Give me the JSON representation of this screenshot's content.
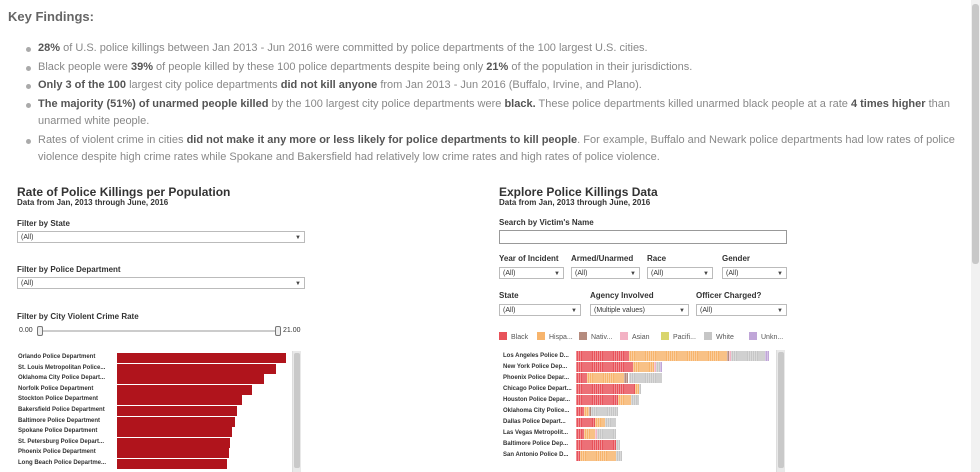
{
  "heading": "Key Findings:",
  "findings": [
    {
      "b1": "28%",
      "t1": " of U.S. police killings between Jan 2013 - Jun 2016 were committed by police departments of the 100 largest U.S. cities.",
      "b2": "",
      "t2": "",
      "b3": "",
      "t3": ""
    },
    {
      "b1": "",
      "t1": "Black people were ",
      "b2": "39%",
      "t2": " of people killed by these 100 police departments despite being only ",
      "b3": "21%",
      "t3": " of the population in their jurisdictions."
    },
    {
      "b1": "Only 3 of the 100",
      "t1": " largest city police departments ",
      "b2": "did not kill anyone",
      "t2": " from Jan 2013 - Jun 2016 (Buffalo, Irvine, and Plano).",
      "b3": "",
      "t3": ""
    },
    {
      "b1": "The majority (51%) of unarmed people killed",
      "t1": " by the 100 largest city police departments were ",
      "b2": "black.",
      "t2": " These police departments killed unarmed black people at a rate ",
      "b3": "4 times higher",
      "t3": " than unarmed white people."
    },
    {
      "b1": "",
      "t1": "Rates of violent crime in cities ",
      "b2": "did not make it any more or less likely for police departments to kill people",
      "t2": ". For example, Buffalo and Newark police departments had low rates of police violence despite high crime rates while Spokane and Bakersfield had relatively low crime rates and high rates of police violence.",
      "b3": "",
      "t3": ""
    }
  ],
  "left": {
    "title": "Rate of Police Killings per Population",
    "subtitle": "Data from Jan, 2013 through June, 2016",
    "filter_state_label": "Filter by State",
    "filter_state_value": "(All)",
    "filter_dept_label": "Filter by Police Department",
    "filter_dept_value": "(All)",
    "filter_crime_label": "Filter by City Violent Crime Rate",
    "crime_min": "0.00",
    "crime_max": "21.00",
    "bar_color": "#b0141c"
  },
  "right": {
    "title": "Explore Police Killings Data",
    "subtitle": "Data from Jan, 2013 through June, 2016",
    "search_label": "Search by Victim's Name",
    "search_value": "",
    "year_label": "Year of Incident",
    "year_value": "(All)",
    "armed_label": "Armed/Unarmed",
    "armed_value": "(All)",
    "race_label": "Race",
    "race_value": "(All)",
    "gender_label": "Gender",
    "gender_value": "(All)",
    "state_label": "State",
    "state_value": "(All)",
    "agency_label": "Agency Involved",
    "agency_value": "(Multiple values)",
    "charged_label": "Officer Charged?",
    "charged_value": "(All)",
    "legend": [
      {
        "label": "Black",
        "color": "#e8525a"
      },
      {
        "label": "Hispa...",
        "color": "#f7b46c"
      },
      {
        "label": "Nativ...",
        "color": "#b58b7e"
      },
      {
        "label": "Asian",
        "color": "#f3b2c4"
      },
      {
        "label": "Pacifi...",
        "color": "#d9d56c"
      },
      {
        "label": "White",
        "color": "#c6c6c6"
      },
      {
        "label": "Unkn...",
        "color": "#c0a6d8"
      }
    ]
  },
  "chart_data": [
    {
      "type": "bar",
      "categories": [
        "Orlando Police Department",
        "St. Louis Metropolitan Police...",
        "Oklahoma City Police Depart...",
        "Norfolk Police Department",
        "Stockton Police Department",
        "Bakersfield Police Department",
        "Baltimore Police Department",
        "Spokane Police Department",
        "St. Petersburg Police Depart...",
        "Phoenix Police Department",
        "Long Beach Police Departme..."
      ],
      "values": [
        1.0,
        0.94,
        0.87,
        0.8,
        0.74,
        0.71,
        0.7,
        0.68,
        0.67,
        0.66,
        0.65
      ],
      "title": "Rate of Police Killings per Population",
      "xlabel": "",
      "ylabel": ""
    },
    {
      "type": "bar",
      "categories": [
        "Los Angeles Police D...",
        "New York Police Dep...",
        "Phoenix Police Depar...",
        "Chicago Police Depart...",
        "Houston Police Depar...",
        "Oklahoma City Police...",
        "Dallas Police Depart...",
        "Las Vegas Metropolit...",
        "Baltimore Police Dep...",
        "San Antonio Police D..."
      ],
      "series": [
        {
          "name": "Black",
          "values": [
            25,
            27,
            5,
            28,
            20,
            4,
            9,
            4,
            19,
            2
          ]
        },
        {
          "name": "Hispa...",
          "values": [
            47,
            10,
            18,
            2,
            6,
            2,
            5,
            5,
            0,
            17
          ]
        },
        {
          "name": "Nativ...",
          "values": [
            1,
            0,
            2,
            0,
            0,
            1,
            0,
            0,
            0,
            0
          ]
        },
        {
          "name": "Asian",
          "values": [
            1,
            1,
            0,
            0,
            0,
            0,
            0,
            1,
            0,
            0
          ]
        },
        {
          "name": "Pacifi...",
          "values": [
            0,
            0,
            0,
            0,
            0,
            0,
            0,
            0,
            0,
            0
          ]
        },
        {
          "name": "White",
          "values": [
            16,
            2,
            16,
            1,
            4,
            13,
            5,
            9,
            2,
            3
          ]
        },
        {
          "name": "Unkn...",
          "values": [
            2,
            1,
            0,
            0,
            0,
            0,
            0,
            0,
            0,
            0
          ]
        }
      ],
      "title": "Explore Police Killings Data",
      "xlabel": "",
      "ylabel": ""
    }
  ]
}
